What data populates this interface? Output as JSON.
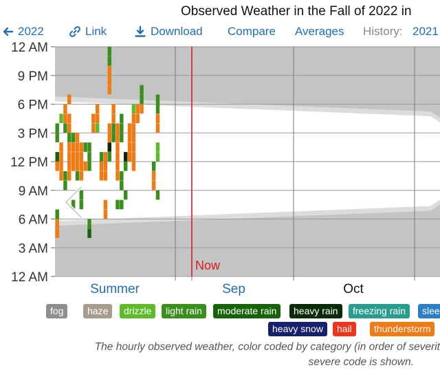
{
  "title": "Observed Weather in the Fall of 2022 in",
  "toolbar": {
    "prev_year": "2022",
    "link": "Link",
    "download": "Download",
    "compare": "Compare",
    "averages": "Averages",
    "history_label": "History:",
    "history_year": "2021"
  },
  "colors": {
    "fog": "#8e8e8e",
    "haze": "#a79d8f",
    "drizzle": "#5dbb29",
    "light_rain": "#3a8f1c",
    "moderate_rain": "#166309",
    "heavy_rain": "#0a2b06",
    "freezing_rain": "#2a9d8f",
    "heavy_snow": "#17206b",
    "hail": "#f0341b",
    "thunderstorm": "#f07a14",
    "night": "#c4c4c4",
    "twilight": "#dcdcdc",
    "now": "#d21f1f",
    "link": "#1f6fb5"
  },
  "legend": [
    {
      "key": "fog",
      "label": "fog"
    },
    {
      "key": "haze",
      "label": "haze"
    },
    {
      "key": "drizzle",
      "label": "drizzle"
    },
    {
      "key": "light_rain",
      "label": "light rain"
    },
    {
      "key": "moderate_rain",
      "label": "moderate rain"
    },
    {
      "key": "heavy_rain",
      "label": "heavy rain"
    },
    {
      "key": "freezing_rain",
      "label": "freezing rain"
    },
    {
      "key": "sleet",
      "label": "slee"
    },
    {
      "key": "heavy_snow",
      "label": "heavy snow"
    },
    {
      "key": "hail",
      "label": "hail"
    },
    {
      "key": "thunderstorm",
      "label": "thunderstorm"
    }
  ],
  "caption": [
    "The hourly observed weather, color coded by category (in order of severit",
    "severe code is shown."
  ],
  "chart_data": {
    "type": "heatmap",
    "title": "Observed Weather in the Fall of 2022 in",
    "y_ticks": [
      "12 AM",
      "9 PM",
      "6 PM",
      "3 PM",
      "12 PM",
      "9 AM",
      "6 AM",
      "3 AM",
      "12 AM"
    ],
    "x_labels": [
      {
        "label": "Summer",
        "link": true
      },
      {
        "label": "Sep",
        "link": true
      },
      {
        "label": "Oct",
        "link": false
      }
    ],
    "x_range": [
      "Aug 22",
      "Nov 2"
    ],
    "month_boundaries": [
      "Sep 1",
      "Sep 22",
      "Oct 1",
      "Nov 1"
    ],
    "now": {
      "label": "Now",
      "date": "Sep 4"
    },
    "grid": true,
    "sunrise_hour_start": 5.8,
    "sunrise_hour_end": 7.4,
    "sunset_hour_start": 18.3,
    "sunset_hour_end": 16.7,
    "observations": [
      {
        "day": 0,
        "hours": [
          4,
          5,
          11,
          12
        ],
        "cat": "thunderstorm"
      },
      {
        "day": 0,
        "hours": [
          6,
          14,
          15
        ],
        "cat": "light_rain"
      },
      {
        "day": 0,
        "hours": [
          12
        ],
        "cat": "moderate_rain"
      },
      {
        "day": 1,
        "hours": [
          10,
          11,
          12,
          13
        ],
        "cat": "thunderstorm"
      },
      {
        "day": 1,
        "hours": [
          16
        ],
        "cat": "drizzle"
      },
      {
        "day": 2,
        "hours": [
          16,
          17
        ],
        "cat": "thunderstorm"
      },
      {
        "day": 2,
        "hours": [
          9,
          10,
          15
        ],
        "cat": "light_rain"
      },
      {
        "day": 3,
        "hours": [
          10,
          11,
          12,
          13,
          15,
          16
        ],
        "cat": "thunderstorm"
      },
      {
        "day": 3,
        "hours": [
          14
        ],
        "cat": "light_rain"
      },
      {
        "day": 3,
        "hours": [
          18
        ],
        "cat": "thunderstorm"
      },
      {
        "day": 4,
        "hours": [
          11,
          12,
          13
        ],
        "cat": "thunderstorm"
      },
      {
        "day": 4,
        "hours": [
          14
        ],
        "cat": "light_rain"
      },
      {
        "day": 4,
        "hours": [
          7
        ],
        "cat": "light_rain"
      },
      {
        "day": 5,
        "hours": [
          11,
          12,
          13,
          14
        ],
        "cat": "thunderstorm"
      },
      {
        "day": 5,
        "hours": [
          10
        ],
        "cat": "light_rain"
      },
      {
        "day": 6,
        "hours": [
          10,
          11,
          12,
          13
        ],
        "cat": "thunderstorm"
      },
      {
        "day": 6,
        "hours": [
          7,
          8
        ],
        "cat": "light_rain"
      },
      {
        "day": 7,
        "hours": [
          11
        ],
        "cat": "thunderstorm"
      },
      {
        "day": 7,
        "hours": [
          13
        ],
        "cat": "light_rain"
      },
      {
        "day": 8,
        "hours": [
          11,
          12,
          13
        ],
        "cat": "light_rain"
      },
      {
        "day": 8,
        "hours": [
          4
        ],
        "cat": "moderate_rain"
      },
      {
        "day": 8,
        "hours": [
          5
        ],
        "cat": "light_rain"
      },
      {
        "day": 9,
        "hours": [
          15,
          16
        ],
        "cat": "thunderstorm"
      },
      {
        "day": 10,
        "hours": [
          16,
          17
        ],
        "cat": "thunderstorm"
      },
      {
        "day": 10,
        "hours": [
          15
        ],
        "cat": "drizzle"
      },
      {
        "day": 11,
        "hours": [
          10,
          11
        ],
        "cat": "thunderstorm"
      },
      {
        "day": 11,
        "hours": [
          12
        ],
        "cat": "light_rain"
      },
      {
        "day": 12,
        "hours": [
          10,
          11,
          12
        ],
        "cat": "thunderstorm"
      },
      {
        "day": 12,
        "hours": [
          6,
          7
        ],
        "cat": "thunderstorm"
      },
      {
        "day": 13,
        "hours": [
          14,
          15
        ],
        "cat": "thunderstorm"
      },
      {
        "day": 13,
        "hours": [
          12
        ],
        "cat": "light_rain"
      },
      {
        "day": 13,
        "hours": [
          13
        ],
        "cat": "heavy_rain"
      },
      {
        "day": 13,
        "hours": [
          19,
          20,
          21
        ],
        "cat": "thunderstorm"
      },
      {
        "day": 13,
        "hours": [
          22,
          23
        ],
        "cat": "light_rain"
      },
      {
        "day": 14,
        "hours": [
          14,
          15
        ],
        "cat": "light_rain"
      },
      {
        "day": 14,
        "hours": [
          16,
          17
        ],
        "cat": "thunderstorm"
      },
      {
        "day": 15,
        "hours": [
          10,
          11,
          12,
          13,
          14,
          15
        ],
        "cat": "thunderstorm"
      },
      {
        "day": 15,
        "hours": [
          7
        ],
        "cat": "light_rain"
      },
      {
        "day": 16,
        "hours": [
          9,
          10
        ],
        "cat": "light_rain"
      },
      {
        "day": 16,
        "hours": [
          14,
          15,
          16
        ],
        "cat": "light_rain"
      },
      {
        "day": 16,
        "hours": [
          7
        ],
        "cat": "light_rain"
      },
      {
        "day": 17,
        "hours": [
          8
        ],
        "cat": "light_rain"
      },
      {
        "day": 17,
        "hours": [
          12
        ],
        "cat": "heavy_rain"
      },
      {
        "day": 17,
        "hours": [
          11
        ],
        "cat": "light_rain"
      },
      {
        "day": 18,
        "hours": [
          12,
          13,
          14,
          15
        ],
        "cat": "thunderstorm"
      },
      {
        "day": 19,
        "hours": [
          11,
          12,
          13,
          14,
          15,
          16
        ],
        "cat": "thunderstorm"
      },
      {
        "day": 19,
        "hours": [
          17
        ],
        "cat": "drizzle"
      },
      {
        "day": 20,
        "hours": [
          16,
          17
        ],
        "cat": "thunderstorm"
      },
      {
        "day": 21,
        "hours": [
          17
        ],
        "cat": "thunderstorm"
      },
      {
        "day": 21,
        "hours": [
          18,
          19
        ],
        "cat": "light_rain"
      },
      {
        "day": 24,
        "hours": [
          9,
          10
        ],
        "cat": "thunderstorm"
      },
      {
        "day": 24,
        "hours": [
          11
        ],
        "cat": "light_rain"
      },
      {
        "day": 25,
        "hours": [
          15,
          16
        ],
        "cat": "thunderstorm"
      },
      {
        "day": 25,
        "hours": [
          8
        ],
        "cat": "light_rain"
      },
      {
        "day": 25,
        "hours": [
          12,
          13
        ],
        "cat": "drizzle"
      },
      {
        "day": 25,
        "hours": [
          17,
          18
        ],
        "cat": "light_rain"
      }
    ]
  }
}
